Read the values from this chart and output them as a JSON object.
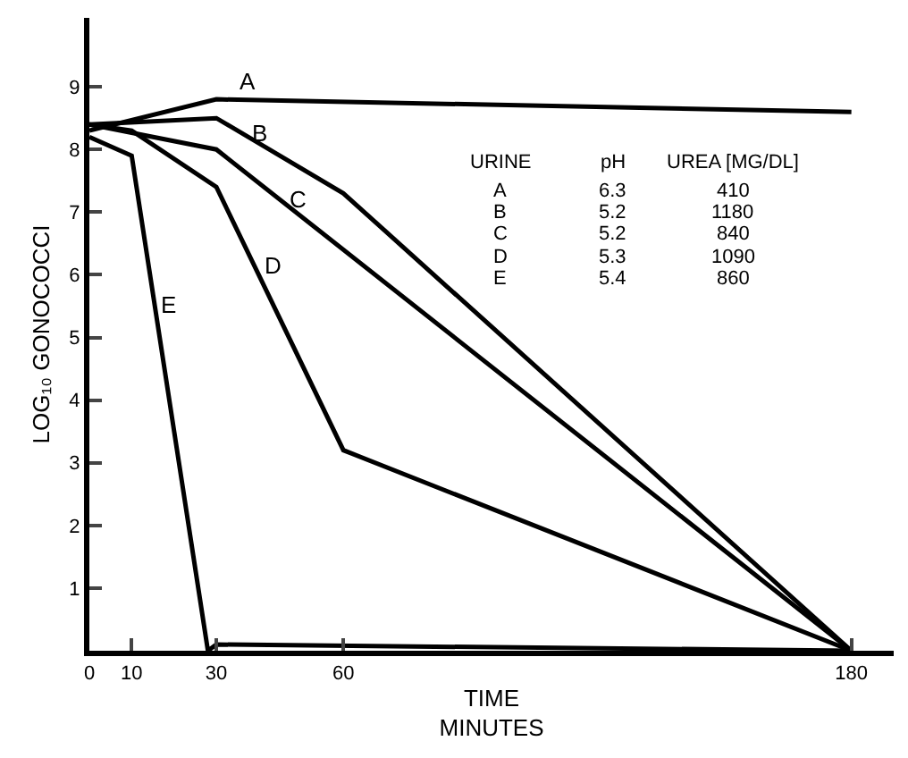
{
  "chart_data": {
    "type": "line",
    "xlabel": "TIME\nMINUTES",
    "ylabel": "LOG₁₀ GONOCOCCI",
    "xlim": [
      0,
      190
    ],
    "xticks": [
      0,
      10,
      30,
      60,
      180
    ],
    "ylim": [
      0,
      10.1
    ],
    "yticks": [
      1,
      2,
      3,
      4,
      5,
      6,
      7,
      8,
      9
    ],
    "legend": false,
    "marker": "none",
    "line_style": "solid",
    "series": [
      {
        "name": "A",
        "color": "#000000",
        "x": [
          0,
          30,
          180
        ],
        "values": [
          8.3,
          8.8,
          8.6
        ]
      },
      {
        "name": "B",
        "color": "#000000",
        "x": [
          0,
          30,
          60,
          180
        ],
        "values": [
          8.4,
          8.5,
          7.3,
          0
        ]
      },
      {
        "name": "C",
        "color": "#000000",
        "x": [
          0,
          30,
          180
        ],
        "values": [
          8.4,
          8.0,
          0
        ]
      },
      {
        "name": "D",
        "color": "#000000",
        "x": [
          0,
          10,
          30,
          60,
          180
        ],
        "values": [
          8.4,
          8.3,
          7.4,
          3.2,
          0
        ]
      },
      {
        "name": "E",
        "color": "#000000",
        "x": [
          0,
          10,
          28,
          30,
          180
        ],
        "values": [
          8.2,
          7.9,
          0,
          0.1,
          0
        ]
      }
    ],
    "annotations": [
      "URINE",
      "pH",
      "UREA [MG/DL]",
      "A",
      "6.3",
      "410",
      "B",
      "5.2",
      "1180",
      "C",
      "5.2",
      "840",
      "D",
      "5.3",
      "1090",
      "E",
      "5.4",
      "860"
    ]
  }
}
